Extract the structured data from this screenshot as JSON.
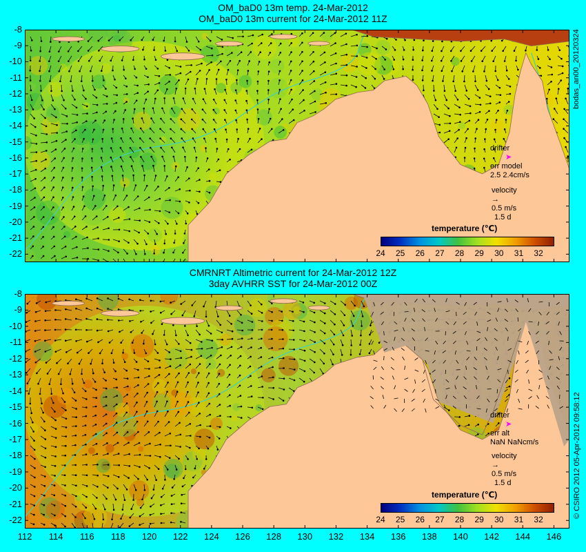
{
  "panels": [
    {
      "title_line1": "OM_baD0 13m temp. 24-Mar-2012",
      "title_line2": "OM_baD0 13m current for 24-Mar-2012 11Z",
      "side_label": "bodas_an00_20120324",
      "drifter_label": "drifter",
      "err_label": "err model",
      "err_value": "2.5 2.4cm/s",
      "velocity_label": "velocity",
      "velocity_value": "0.5 m/s",
      "velocity_days": "1.5 d"
    },
    {
      "title_line1": "CMRNRT Altimetric current for 24-Mar-2012 12Z",
      "title_line2": "3day AVHRR SST for 24-Mar-2012 00Z",
      "side_label": "© CSIRO 2012  05-Apr-2012 09:58:12",
      "drifter_label": "drifter",
      "err_label": "err alt",
      "err_value": "NaN NaNcm/s",
      "velocity_label": "velocity",
      "velocity_value": "0.5 m/s",
      "velocity_days": "1.5 d"
    }
  ],
  "legend": {
    "title": "temperature (℃)",
    "ticks": [
      "24",
      "25",
      "26",
      "27",
      "28",
      "29",
      "30",
      "31",
      "32"
    ],
    "range": [
      24,
      32.8
    ],
    "colors": [
      "#000080",
      "#0030c0",
      "#0090e0",
      "#00c8c8",
      "#40c040",
      "#a0e020",
      "#f0e000",
      "#f0a000",
      "#d05000",
      "#902000"
    ]
  },
  "axes": {
    "lat_ticks": [
      "-8",
      "-9",
      "-10",
      "-11",
      "-12",
      "-13",
      "-14",
      "-15",
      "-16",
      "-17",
      "-18",
      "-19",
      "-20",
      "-21",
      "-22"
    ],
    "lon_ticks": [
      "112",
      "114",
      "116",
      "118",
      "120",
      "122",
      "124",
      "126",
      "128",
      "130",
      "132",
      "134",
      "136",
      "138",
      "140",
      "142",
      "144",
      "146"
    ],
    "lat_range": [
      -22.5,
      -8
    ],
    "lon_range": [
      112,
      147
    ]
  },
  "colors": {
    "background": "#00ffff",
    "land": "#fdc797",
    "land_nodata": "#bca48a",
    "drifter": "#ff00ff",
    "isobath": "#40d0c0"
  }
}
